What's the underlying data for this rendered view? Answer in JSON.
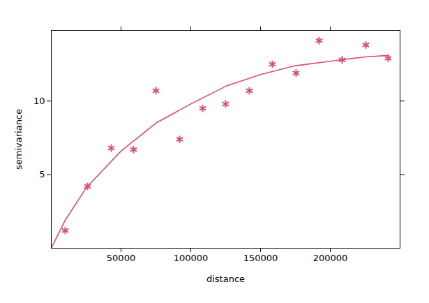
{
  "chart_data": {
    "type": "scatter",
    "x_label": "distance",
    "y_label": "semivariance",
    "xlim": [
      0,
      250000
    ],
    "ylim": [
      0,
      14.8
    ],
    "xticks": [
      50000,
      100000,
      150000,
      200000
    ],
    "yticks": [
      5,
      10
    ],
    "series": [
      {
        "type": "scatter",
        "marker": "asterisk",
        "color": "#d94f6b",
        "x": [
          10000,
          26000,
          43000,
          59000,
          75000,
          92000,
          108500,
          125000,
          142000,
          158500,
          175500,
          192000,
          208500,
          225500,
          241500
        ],
        "values": [
          1.2,
          4.2,
          6.8,
          6.7,
          10.7,
          7.4,
          9.5,
          9.8,
          10.7,
          12.5,
          11.9,
          14.1,
          12.8,
          13.8,
          12.9
        ]
      },
      {
        "type": "line",
        "color": "#d94f6b",
        "x": [
          0,
          10000,
          25000,
          50000,
          75000,
          100000,
          125000,
          150000,
          175000,
          200000,
          225000,
          242000
        ],
        "values": [
          0,
          1.9,
          4.1,
          6.6,
          8.5,
          9.8,
          11.0,
          11.8,
          12.4,
          12.7,
          13.0,
          13.1
        ]
      }
    ]
  }
}
